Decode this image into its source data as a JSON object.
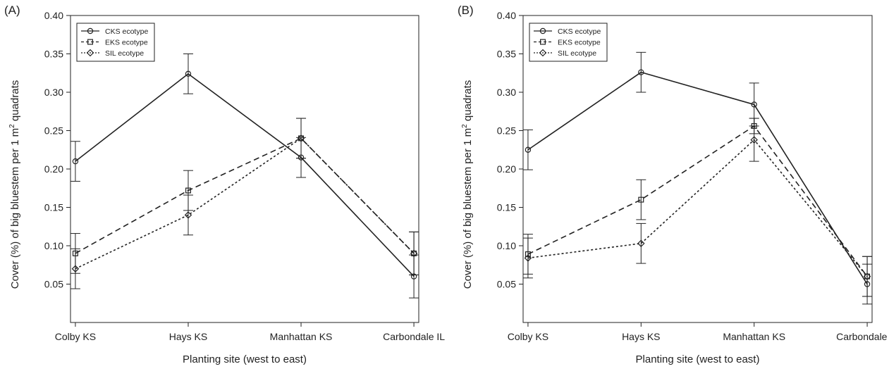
{
  "chart_data": [
    {
      "panel_label": "(A)",
      "type": "line",
      "categories": [
        "Colby KS",
        "Hays KS",
        "Manhattan KS",
        "Carbondale IL"
      ],
      "xlabel": "Planting site (west to east)",
      "ylabel": {
        "before": "Cover (%) of big bluestem per 1 m",
        "sup": "2",
        "after": " quadrats"
      },
      "ylim": [
        0,
        0.4
      ],
      "yticks": [
        0.05,
        0.1,
        0.15,
        0.2,
        0.25,
        0.3,
        0.35,
        0.4
      ],
      "ytick_labels": [
        "0.05",
        "0.10",
        "0.15",
        "0.20",
        "0.25",
        "0.30",
        "0.35",
        "0.40"
      ],
      "legend_position": "top-left",
      "series": [
        {
          "name": "CKS ecotype",
          "marker": "circle",
          "dash": "solid",
          "values": [
            0.21,
            0.324,
            0.215,
            0.06
          ],
          "errors": [
            0.026,
            0.026,
            0.026,
            0.028
          ]
        },
        {
          "name": "EKS ecotype",
          "marker": "square",
          "dash": "dashed",
          "values": [
            0.09,
            0.172,
            0.24,
            0.09
          ],
          "errors": [
            0.026,
            0.026,
            0.026,
            0.028
          ]
        },
        {
          "name": "SIL ecotype",
          "marker": "diamond",
          "dash": "dotted",
          "values": [
            0.07,
            0.14,
            0.24,
            0.09
          ],
          "errors": [
            0.026,
            0.026,
            0.026,
            0.028
          ]
        }
      ]
    },
    {
      "panel_label": "(B)",
      "type": "line",
      "categories": [
        "Colby KS",
        "Hays KS",
        "Manhattan KS",
        "Carbondale IL"
      ],
      "xlabel": "Planting site (west to east)",
      "ylabel": {
        "before": "Cover (%) of big bluestem per 1 m",
        "sup": "2",
        "after": " quadrats"
      },
      "ylim": [
        0,
        0.4
      ],
      "yticks": [
        0.05,
        0.1,
        0.15,
        0.2,
        0.25,
        0.3,
        0.35,
        0.4
      ],
      "ytick_labels": [
        "0.05",
        "0.10",
        "0.15",
        "0.20",
        "0.25",
        "0.30",
        "0.35",
        "0.40"
      ],
      "legend_position": "top-left",
      "series": [
        {
          "name": "CKS ecotype",
          "marker": "circle",
          "dash": "solid",
          "values": [
            0.225,
            0.326,
            0.284,
            0.05
          ],
          "errors": [
            0.026,
            0.026,
            0.028,
            0.026
          ]
        },
        {
          "name": "EKS ecotype",
          "marker": "square",
          "dash": "dashed",
          "values": [
            0.089,
            0.16,
            0.256,
            0.06
          ],
          "errors": [
            0.026,
            0.026,
            0.01,
            0.026
          ]
        },
        {
          "name": "SIL ecotype",
          "marker": "diamond",
          "dash": "dotted",
          "values": [
            0.084,
            0.103,
            0.238,
            0.06
          ],
          "errors": [
            0.026,
            0.026,
            0.028,
            0.026
          ]
        }
      ]
    }
  ]
}
